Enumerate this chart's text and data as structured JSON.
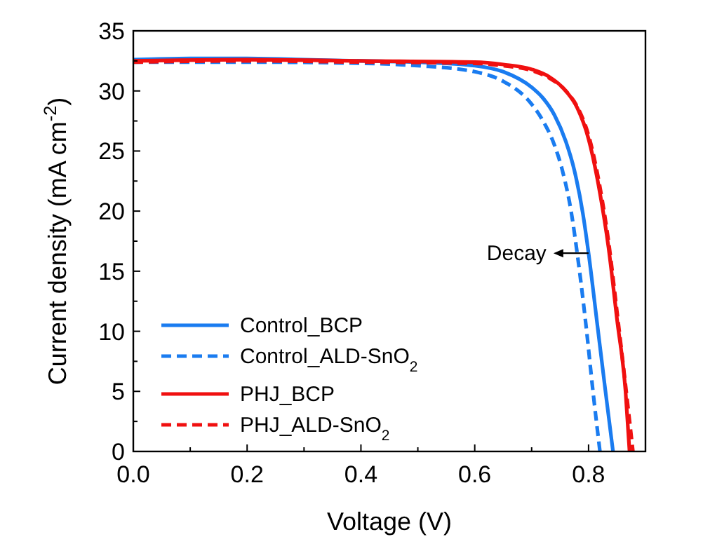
{
  "chart_data": {
    "type": "line",
    "xlabel": "Voltage (V)",
    "ylabel": "Current density (mA cm$^{-2}$)",
    "xlim": [
      0,
      0.9
    ],
    "ylim": [
      0,
      35
    ],
    "xticks": [
      {
        "value": 0,
        "label": "0.0"
      },
      {
        "value": 0.1,
        "label": null
      },
      {
        "value": 0.2,
        "label": "0.2"
      },
      {
        "value": 0.3,
        "label": null
      },
      {
        "value": 0.4,
        "label": "0.4"
      },
      {
        "value": 0.5,
        "label": null
      },
      {
        "value": 0.6,
        "label": "0.6"
      },
      {
        "value": 0.7,
        "label": null
      },
      {
        "value": 0.8,
        "label": "0.8"
      },
      {
        "value": 0.9,
        "label": null
      }
    ],
    "yticks": [
      0,
      {
        "value": 2.5,
        "label": null
      },
      5,
      {
        "value": 7.5,
        "label": null
      },
      10,
      {
        "value": 12.5,
        "label": null
      },
      15,
      {
        "value": 17.5,
        "label": null
      },
      20,
      {
        "value": 22.5,
        "label": null
      },
      25,
      {
        "value": 27.5,
        "label": null
      },
      30,
      {
        "value": 32.5,
        "label": null
      },
      35
    ],
    "legend": "bottom left",
    "grid": false,
    "marker": "none",
    "annotations": [
      {
        "text": "Decay",
        "x": 0.8,
        "y": 16.5
      }
    ],
    "series": [
      {
        "name": "Control_BCP",
        "color": "#1a7cf0",
        "line_style": "solid",
        "x": [
          0,
          0.1,
          0.2,
          0.3,
          0.4,
          0.5,
          0.6,
          0.65,
          0.7,
          0.72,
          0.74,
          0.76,
          0.775,
          0.79,
          0.8,
          0.815,
          0.83,
          0.843
        ],
        "values": [
          32.6,
          32.7,
          32.7,
          32.6,
          32.5,
          32.4,
          32.1,
          31.6,
          30.3,
          29.4,
          28.0,
          25.8,
          23.4,
          19.8,
          16.5,
          10.7,
          4.9,
          0
        ]
      },
      {
        "name": "Control_ALD-SnO$_{2}$",
        "color": "#1a7cf0",
        "line_style": "dashed",
        "x": [
          0,
          0.2,
          0.4,
          0.5,
          0.6,
          0.65,
          0.7,
          0.72,
          0.74,
          0.755,
          0.77,
          0.78,
          0.795,
          0.808,
          0.82
        ],
        "values": [
          32.4,
          32.4,
          32.3,
          32.1,
          31.6,
          30.8,
          28.9,
          27.5,
          25.5,
          23.2,
          19.8,
          16.5,
          10.7,
          4.9,
          0
        ]
      },
      {
        "name": "PHJ_BCP",
        "color": "#f01010",
        "line_style": "solid",
        "x": [
          0,
          0.2,
          0.4,
          0.6,
          0.65,
          0.7,
          0.73,
          0.76,
          0.78,
          0.8,
          0.82,
          0.835,
          0.85,
          0.865,
          0.872
        ],
        "values": [
          32.5,
          32.6,
          32.5,
          32.4,
          32.2,
          31.8,
          31.2,
          30.0,
          28.6,
          26.0,
          21.5,
          17.0,
          11.0,
          5.0,
          0
        ]
      },
      {
        "name": "PHJ_ALD-SnO$_{2}$",
        "color": "#f01010",
        "line_style": "dashed",
        "x": [
          0,
          0.2,
          0.4,
          0.6,
          0.65,
          0.7,
          0.73,
          0.76,
          0.78,
          0.8,
          0.82,
          0.835,
          0.85,
          0.865,
          0.878
        ],
        "values": [
          32.4,
          32.5,
          32.4,
          32.3,
          32.1,
          31.7,
          31.1,
          30.0,
          28.7,
          26.3,
          22.0,
          17.5,
          11.6,
          5.5,
          0
        ]
      }
    ]
  }
}
